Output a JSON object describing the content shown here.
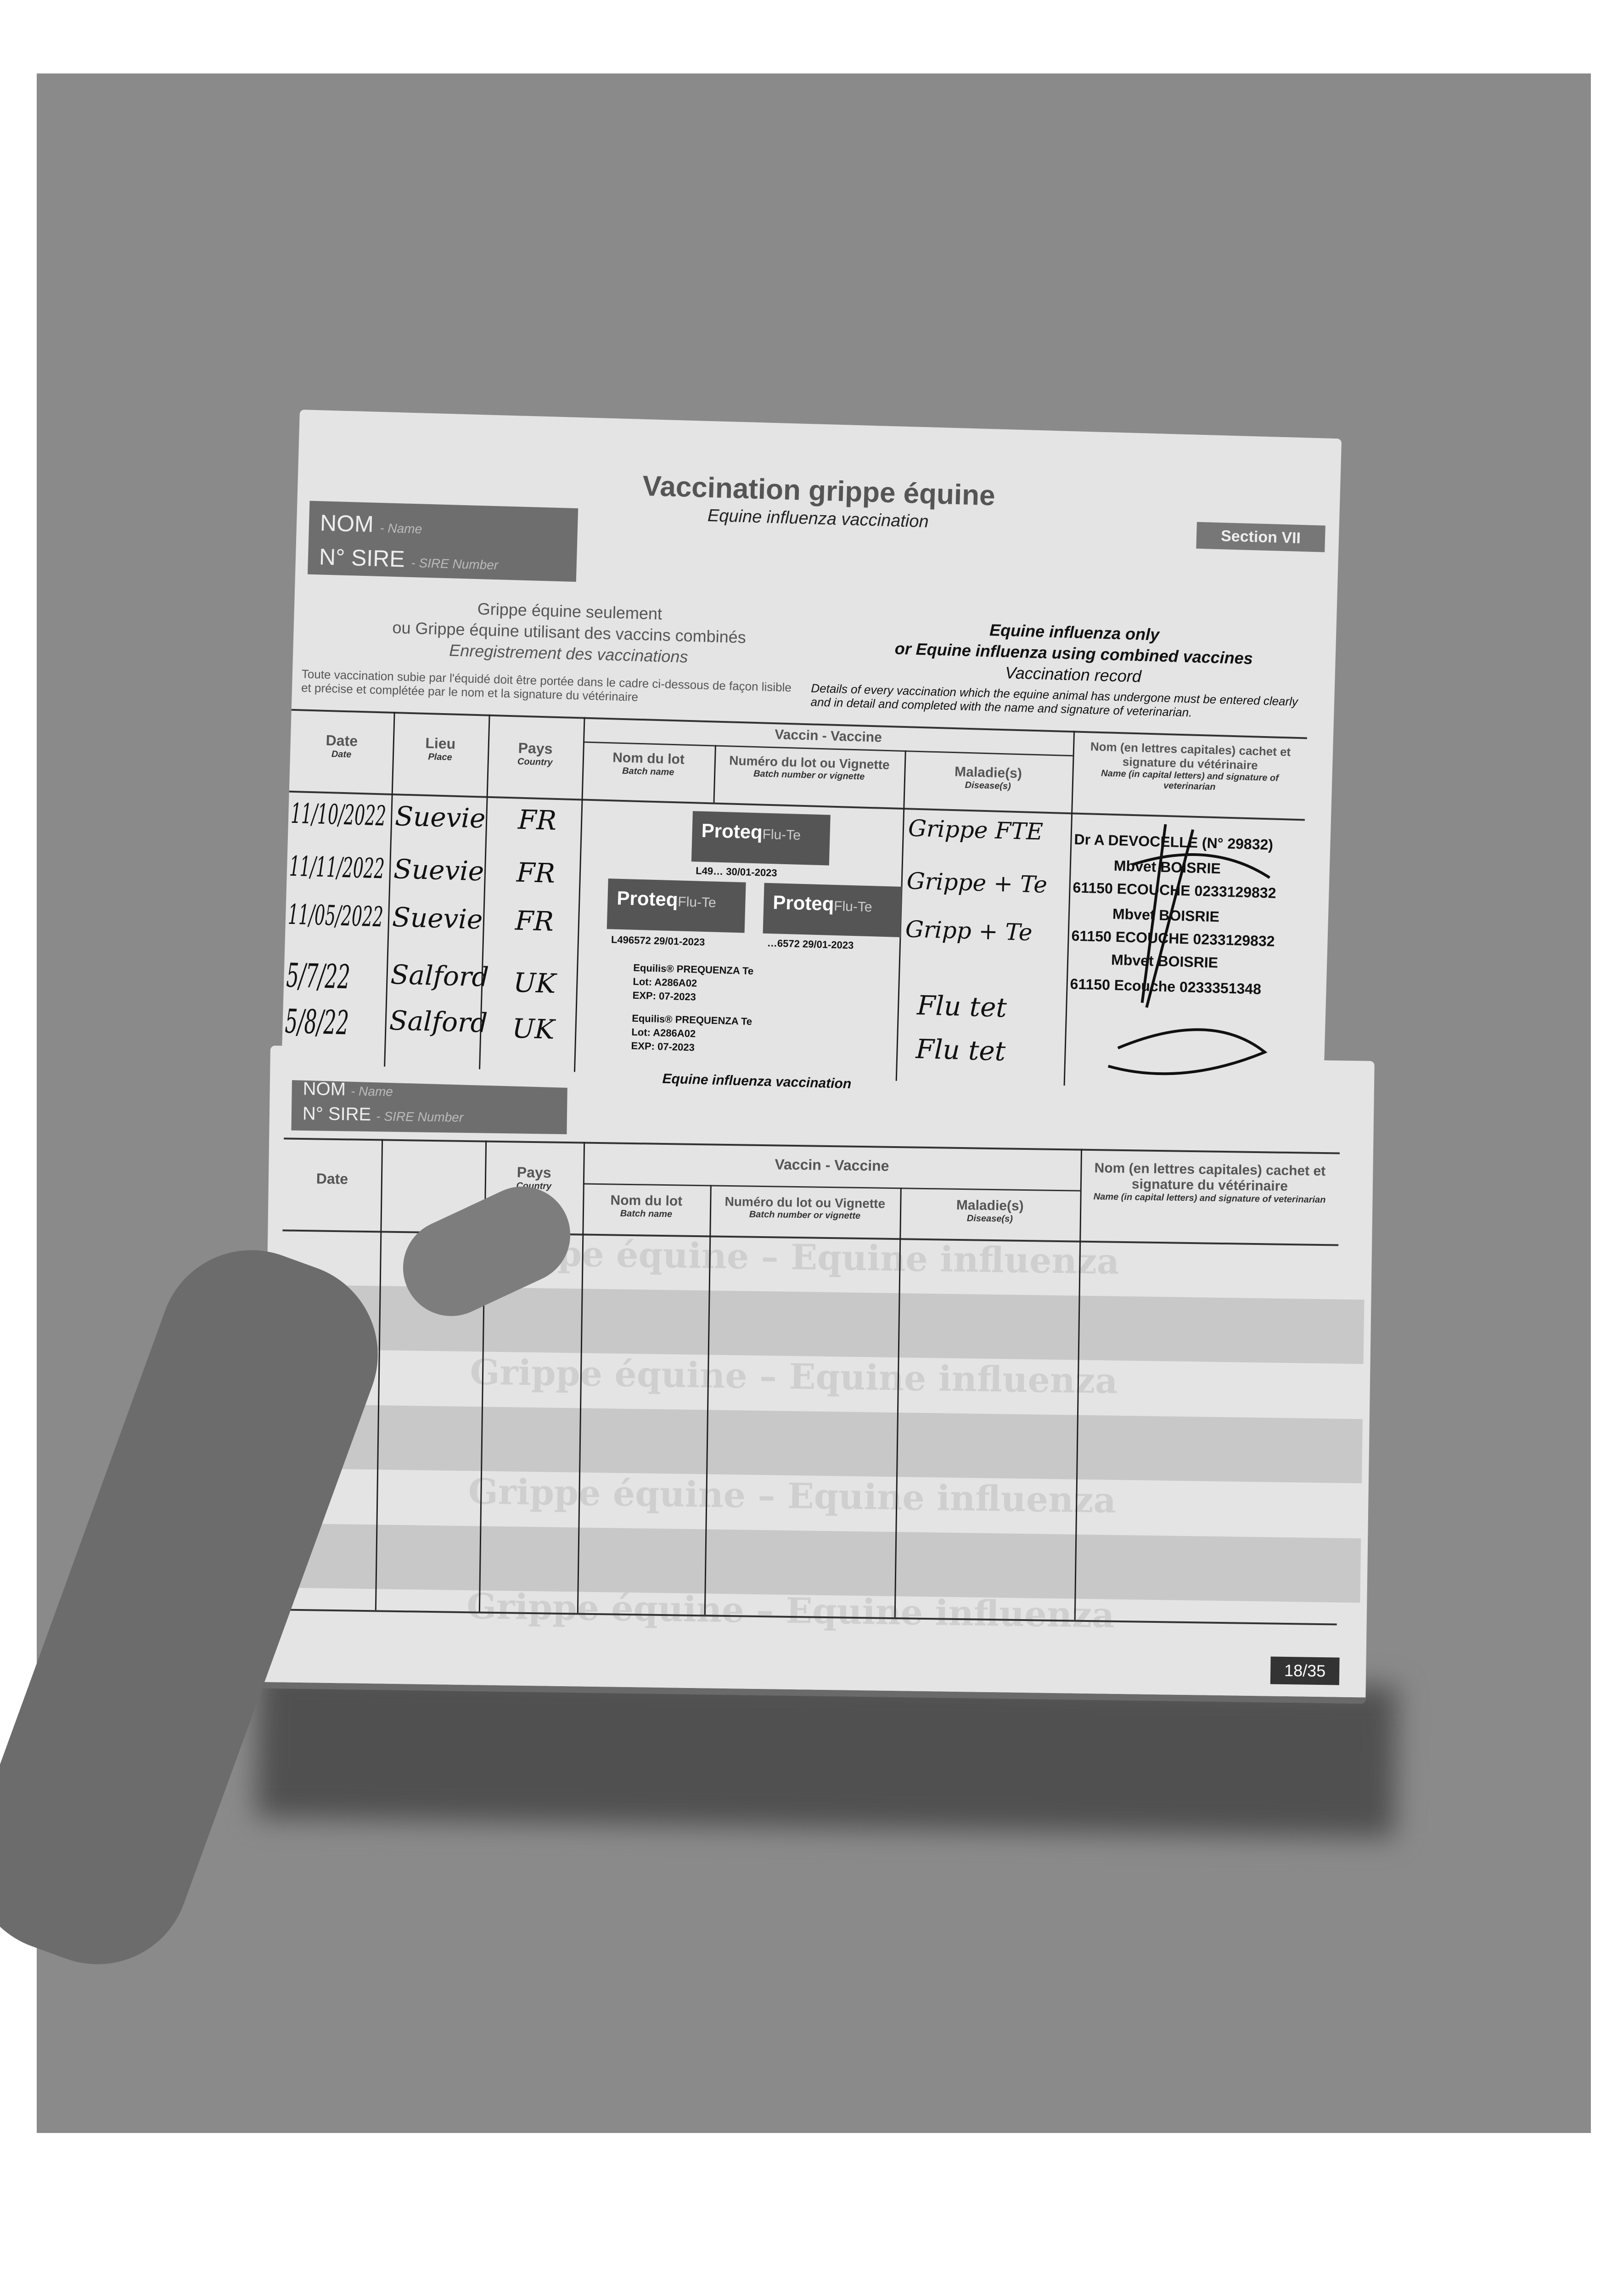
{
  "top_page": {
    "title": "Vaccination grippe équine",
    "subtitle": "Equine influenza vaccination",
    "section": "Section VII",
    "nom": "NOM",
    "nom_en": "- Name",
    "sire": "N° SIRE",
    "sire_en": "- SIRE Number",
    "fr_lines": [
      "Grippe équine seulement",
      "ou Grippe équine utilisant des vaccins combinés",
      "Enregistrement des vaccinations"
    ],
    "en_lines": [
      "Equine influenza only",
      "or Equine influenza using combined vaccines",
      "Vaccination record"
    ],
    "fr_note": "Toute vaccination subie par l'équidé doit être portée dans le cadre ci-dessous de façon lisible et précise et complétée par le nom et la signature du vétérinaire",
    "en_note": "Details of every vaccination which the equine animal has undergone must be entered clearly and in detail and completed with the name and signature of veterinarian.",
    "headers": {
      "date": "Date",
      "date_en": "Date",
      "lieu": "Lieu",
      "lieu_en": "Place",
      "pays": "Pays",
      "pays_en": "Country",
      "vaccin": "Vaccin - Vaccine",
      "lot": "Nom du lot",
      "lot_en": "Batch name",
      "num": "Numéro du lot ou Vignette",
      "num_en": "Batch number or vignette",
      "maladie": "Maladie(s)",
      "maladie_en": "Disease(s)",
      "vet": "Nom (en lettres capitales) cachet et signature du vétérinaire",
      "vet_en": "Name (in capital letters) and signature of veterinarian"
    },
    "rows": [
      {
        "date": "11/10/2022",
        "lieu": "Suevie",
        "pays": "FR",
        "maladie": "Grippe FTE"
      },
      {
        "date": "11/11/2022",
        "lieu": "Suevie",
        "pays": "FR",
        "maladie": "Grippe + Te"
      },
      {
        "date": "11/05/2022",
        "lieu": "Suevie",
        "pays": "FR",
        "maladie": "Gripp + Te"
      },
      {
        "date": "5/7/22",
        "lieu": "Salford",
        "pays": "UK",
        "maladie": "Flu tet"
      },
      {
        "date": "5/8/22",
        "lieu": "Salford",
        "pays": "UK",
        "maladie": "Flu tet"
      }
    ],
    "stickers": [
      {
        "brand": "Proteq",
        "product": "Flu-Te",
        "lot": "L49…",
        "exp": "30/01-2023"
      },
      {
        "brand": "Proteq",
        "product": "Flu-Te",
        "lot": "…6572",
        "exp": "29/01-2023"
      },
      {
        "brand": "Proteq",
        "product": "Flu-Te",
        "lot": "L496572",
        "exp": "29/01-2023"
      }
    ],
    "equilis": [
      {
        "name": "Equilis® PREQUENZA Te",
        "lot": "A286A02",
        "exp": "07-2023"
      },
      {
        "name": "Equilis® PREQUENZA Te",
        "lot": "A286A02",
        "exp": "07-2023"
      }
    ],
    "lot_label": "Lot:",
    "exp_label": "EXP:",
    "stamps": [
      "Dr A DEVOCELLE (N° 29832)",
      "Mbvet BOISRIE",
      "61150 ECOUCHE 0233129832",
      "Mbvet BOISRIE",
      "61150 ECOUCHE 0233129832",
      "Mbvet BOISRIE",
      "61150 Ecouche 0233351348"
    ],
    "footer": "Equine influenza vaccination"
  },
  "bottom_page": {
    "nom": "NOM",
    "nom_en": "- Name",
    "sire": "N° SIRE",
    "sire_en": "- SIRE Number",
    "headers": {
      "date": "Date",
      "pays": "Pays",
      "pays_en": "Country",
      "vaccin": "Vaccin - Vaccine",
      "lot": "Nom du lot",
      "lot_en": "Batch name",
      "num": "Numéro du lot ou Vignette",
      "num_en": "Batch number or vignette",
      "maladie": "Maladie(s)",
      "maladie_en": "Disease(s)",
      "vet": "Nom (en lettres capitales) cachet et signature du vétérinaire",
      "vet_en": "Name (in capital letters) and signature of veterinarian"
    },
    "watermark": "Grippe équine – Equine influenza",
    "page_number": "18/35"
  }
}
